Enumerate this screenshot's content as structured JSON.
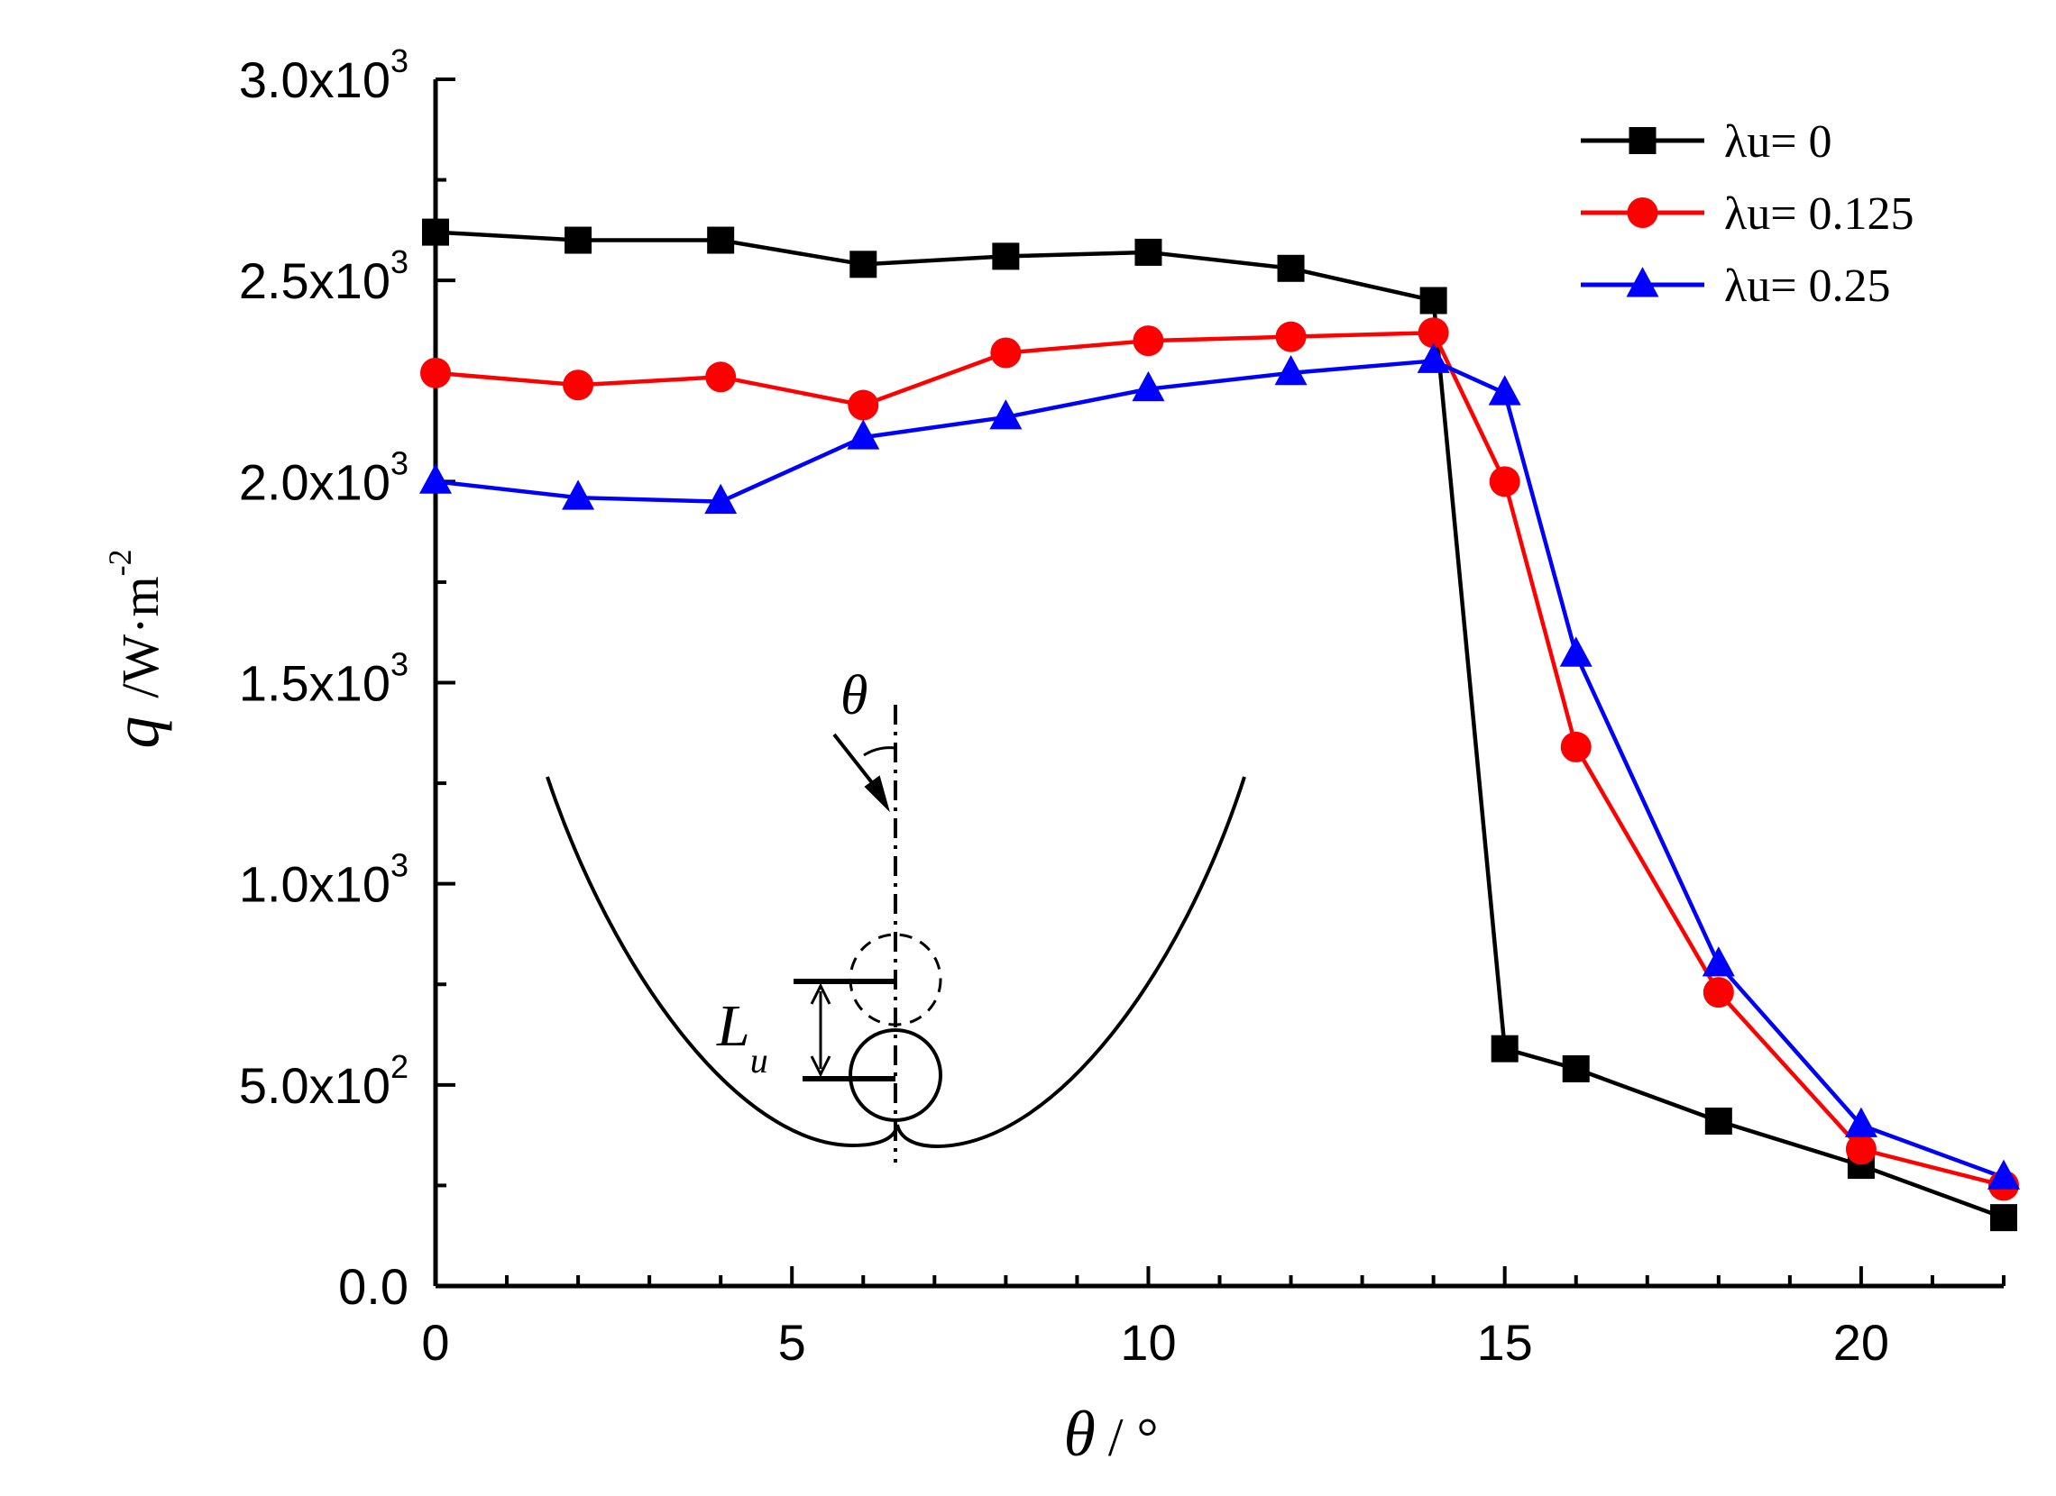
{
  "chart_data": {
    "type": "line",
    "title": "",
    "xlabel": {
      "symbol": "θ",
      "unit": "/ °"
    },
    "ylabel": {
      "symbol": "q",
      "unit": "/W·m",
      "exponent": "-2"
    },
    "xlim": [
      0,
      22
    ],
    "ylim": [
      0,
      3000
    ],
    "x_major_ticks": [
      0,
      5,
      10,
      15,
      20
    ],
    "x_tick_labels": [
      "0",
      "5",
      "10",
      "15",
      "20"
    ],
    "y_major_ticks": [
      0,
      500,
      1000,
      1500,
      2000,
      2500,
      3000
    ],
    "y_tick_labels": [
      {
        "mantissa": "0.0",
        "exponent": ""
      },
      {
        "mantissa": "5.0x10",
        "exponent": "2"
      },
      {
        "mantissa": "1.0x10",
        "exponent": "3"
      },
      {
        "mantissa": "1.5x10",
        "exponent": "3"
      },
      {
        "mantissa": "2.0x10",
        "exponent": "3"
      },
      {
        "mantissa": "2.5x10",
        "exponent": "3"
      },
      {
        "mantissa": "3.0x10",
        "exponent": "3"
      }
    ],
    "grid": false,
    "legend_position": "top-right",
    "series": [
      {
        "name": "λu= 0",
        "color": "#000000",
        "marker": "square",
        "x": [
          0,
          2,
          4,
          6,
          8,
          10,
          12,
          14,
          15,
          16,
          18,
          20,
          22
        ],
        "values": [
          2620,
          2600,
          2600,
          2540,
          2560,
          2570,
          2530,
          2450,
          590,
          540,
          410,
          300,
          170
        ]
      },
      {
        "name": "λu= 0.125",
        "color": "#ff0000",
        "marker": "circle",
        "x": [
          0,
          2,
          4,
          6,
          8,
          10,
          12,
          14,
          15,
          16,
          18,
          20,
          22
        ],
        "values": [
          2270,
          2240,
          2260,
          2190,
          2320,
          2350,
          2360,
          2370,
          2000,
          1340,
          730,
          340,
          250
        ]
      },
      {
        "name": "λu= 0.25",
        "color": "#0000ff",
        "marker": "triangle",
        "x": [
          0,
          2,
          4,
          6,
          8,
          10,
          12,
          14,
          15,
          16,
          18,
          20,
          22
        ],
        "values": [
          2000,
          1960,
          1950,
          2110,
          2160,
          2230,
          2270,
          2300,
          2220,
          1570,
          800,
          400,
          270
        ]
      }
    ],
    "inset_diagram": {
      "description_label_angle": "θ",
      "description_label_length": "L",
      "description_label_length_subscript": "u"
    }
  }
}
